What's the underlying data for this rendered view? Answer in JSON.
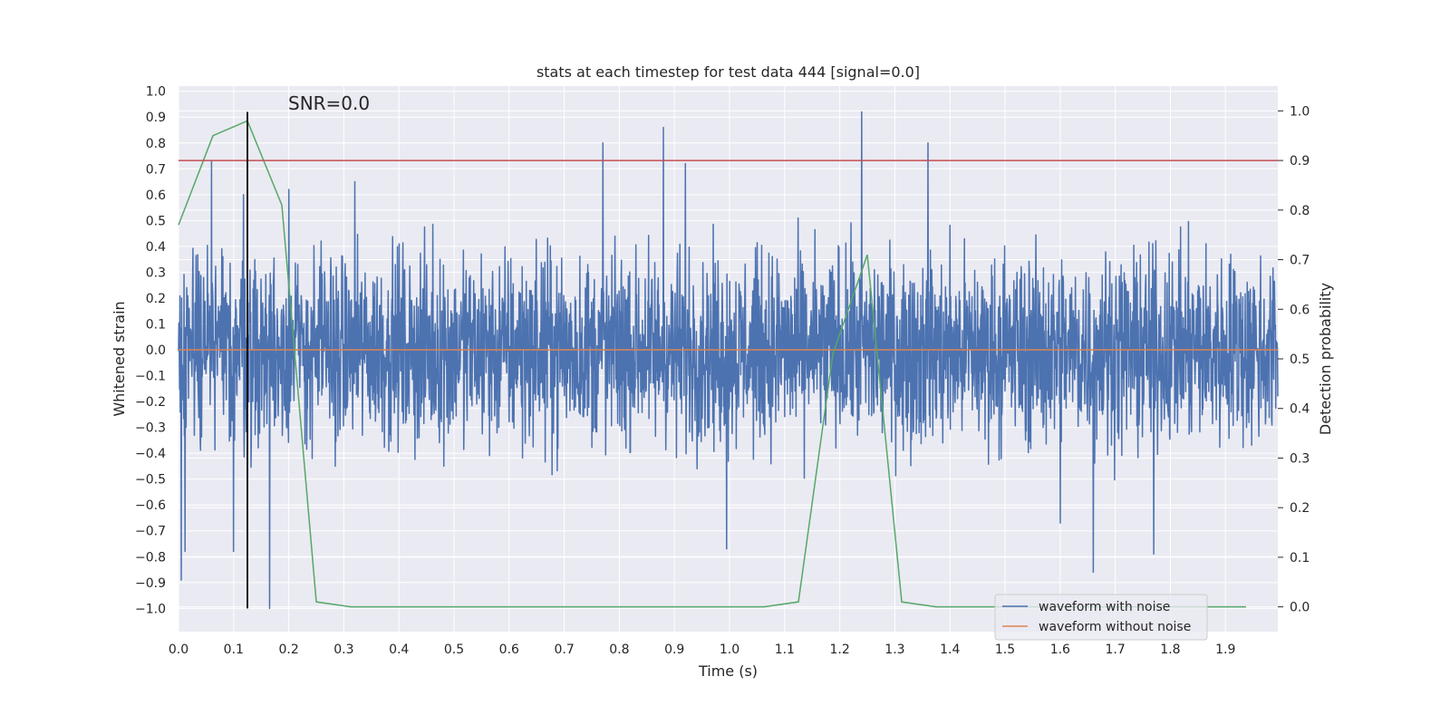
{
  "chart_data": {
    "type": "line",
    "title": "stats at each timestep for test data 444 [signal=0.0]",
    "xlabel": "Time (s)",
    "ylabel": "Whitened strain",
    "y2label": "Detection probability",
    "xlim": [
      0.0,
      1.995
    ],
    "ylim": [
      -1.09,
      1.02
    ],
    "y2lim": [
      -0.05,
      1.05
    ],
    "x_ticks": [
      0.0,
      0.1,
      0.2,
      0.3,
      0.4,
      0.5,
      0.6,
      0.7,
      0.8,
      0.9,
      1.0,
      1.1,
      1.2,
      1.3,
      1.4,
      1.5,
      1.6,
      1.7,
      1.8,
      1.9
    ],
    "x_tick_labels": [
      "0.0",
      "0.1",
      "0.2",
      "0.3",
      "0.4",
      "0.5",
      "0.6",
      "0.7",
      "0.8",
      "0.9",
      "1.0",
      "1.1",
      "1.2",
      "1.3",
      "1.4",
      "1.5",
      "1.6",
      "1.7",
      "1.8",
      "1.9"
    ],
    "y_ticks": [
      1.0,
      0.9,
      0.8,
      0.7,
      0.6,
      0.5,
      0.4,
      0.3,
      0.2,
      0.1,
      0.0,
      -0.1,
      -0.2,
      -0.3,
      -0.4,
      -0.5,
      -0.6,
      -0.7,
      -0.8,
      -0.9,
      -1.0
    ],
    "y_tick_labels": [
      "1.0",
      "0.9",
      "0.8",
      "0.7",
      "0.6",
      "0.5",
      "0.4",
      "0.3",
      "0.2",
      "0.1",
      "0.0",
      "−0.1",
      "−0.2",
      "−0.3",
      "−0.4",
      "−0.5",
      "−0.6",
      "−0.7",
      "−0.8",
      "−0.9",
      "−1.0"
    ],
    "y2_ticks": [
      1.0,
      0.9,
      0.8,
      0.7,
      0.6,
      0.5,
      0.4,
      0.3,
      0.2,
      0.1,
      0.0
    ],
    "y2_tick_labels": [
      "1.0",
      "0.9",
      "0.8",
      "0.7",
      "0.6",
      "0.5",
      "0.4",
      "0.3",
      "0.2",
      "0.1",
      "0.0"
    ],
    "grid": true,
    "legend_position": "lower-right",
    "annotation": "SNR=0.0",
    "series": [
      {
        "name": "waveform with noise",
        "color": "#4c72b0",
        "kind": "noise",
        "x_range": [
          0.0,
          1.995
        ],
        "amplitude_typical": 0.3,
        "y_min_observed": -1.0,
        "y_max_observed": 0.92,
        "spikes": [
          {
            "x": 0.005,
            "y": -0.89
          },
          {
            "x": 0.012,
            "y": -0.78
          },
          {
            "x": 0.06,
            "y": 0.73
          },
          {
            "x": 0.1,
            "y": -0.78
          },
          {
            "x": 0.118,
            "y": 0.6
          },
          {
            "x": 0.165,
            "y": -1.0
          },
          {
            "x": 0.2,
            "y": 0.62
          },
          {
            "x": 0.32,
            "y": 0.65
          },
          {
            "x": 0.77,
            "y": 0.8
          },
          {
            "x": 0.88,
            "y": 0.86
          },
          {
            "x": 0.92,
            "y": 0.72
          },
          {
            "x": 0.995,
            "y": -0.77
          },
          {
            "x": 1.24,
            "y": 0.92
          },
          {
            "x": 1.36,
            "y": 0.8
          },
          {
            "x": 1.6,
            "y": -0.67
          },
          {
            "x": 1.66,
            "y": -0.86
          },
          {
            "x": 1.77,
            "y": -0.79
          }
        ]
      },
      {
        "name": "waveform without noise",
        "color": "#dd8452",
        "x": [
          0.0,
          1.995
        ],
        "y": [
          0.0,
          0.0
        ]
      },
      {
        "name": "",
        "color": "#55a868",
        "axis": "right",
        "x": [
          0.0,
          0.0625,
          0.125,
          0.1875,
          0.25,
          0.3125,
          0.375,
          0.4375,
          0.5,
          0.5625,
          0.625,
          0.6875,
          0.75,
          0.8125,
          0.875,
          0.9375,
          1.0,
          1.0625,
          1.125,
          1.1875,
          1.25,
          1.3125,
          1.375,
          1.4375,
          1.5,
          1.5625,
          1.625,
          1.6875,
          1.75,
          1.8125,
          1.875,
          1.9375
        ],
        "y": [
          0.77,
          0.95,
          0.98,
          0.81,
          0.01,
          0.0,
          0.0,
          0.0,
          0.0,
          0.0,
          0.0,
          0.0,
          0.0,
          0.0,
          0.0,
          0.0,
          0.0,
          0.0,
          0.01,
          0.51,
          0.71,
          0.01,
          0.0,
          0.0,
          0.0,
          0.0,
          0.0,
          0.0,
          0.0,
          0.0,
          0.0,
          0.0
        ]
      }
    ],
    "reference_lines": [
      {
        "kind": "horizontal",
        "axis": "right",
        "y": 0.9,
        "color": "#c44e52"
      },
      {
        "kind": "vertical",
        "x": 0.125,
        "y_range": [
          -1.0,
          0.92
        ],
        "color": "#000000"
      }
    ]
  }
}
